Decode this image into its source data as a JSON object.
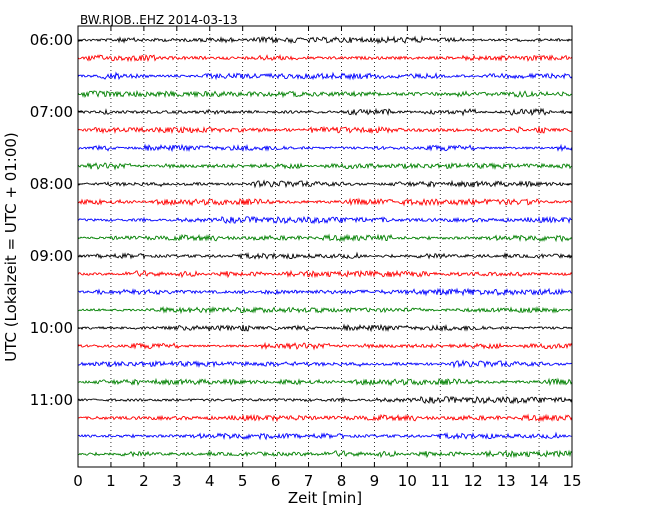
{
  "chart_data": {
    "type": "line",
    "title": "BW.RJOB..EHZ 2014-03-13",
    "xlabel": "Zeit  [min]",
    "ylabel": "UTC (Lokalzeit = UTC + 01:00)",
    "xlim": [
      0,
      15
    ],
    "x_ticks": [
      "0",
      "1",
      "2",
      "3",
      "4",
      "5",
      "6",
      "7",
      "8",
      "9",
      "10",
      "11",
      "12",
      "13",
      "14",
      "15"
    ],
    "y_tick_labels": [
      "06:00",
      "07:00",
      "08:00",
      "09:00",
      "10:00",
      "11:00"
    ],
    "grid": "vertical-dotted",
    "trace_start": "06:00",
    "trace_interval_min": 15,
    "trace_count": 24,
    "colors": [
      "#000000",
      "#ff0000",
      "#0000ff",
      "#008000"
    ]
  }
}
